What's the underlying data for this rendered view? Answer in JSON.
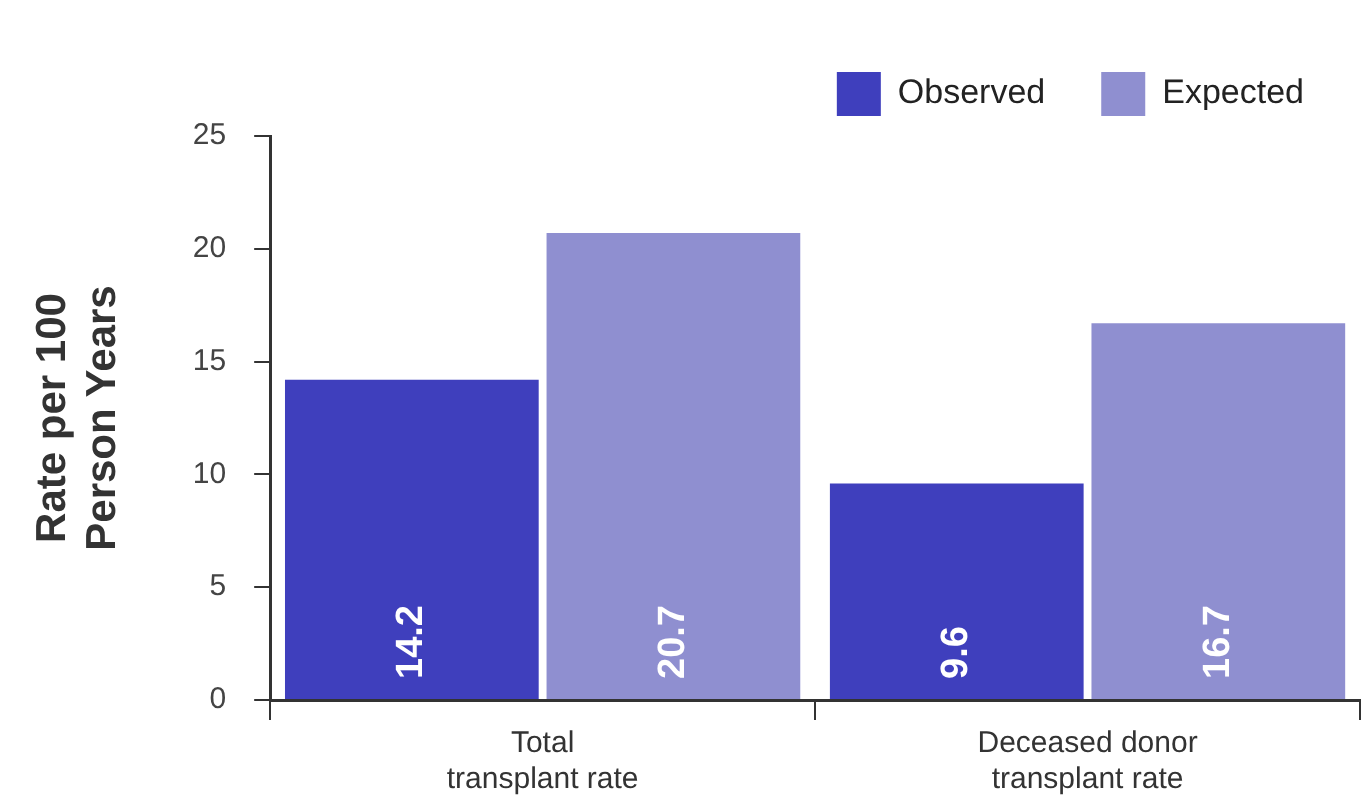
{
  "chart_data": {
    "type": "bar",
    "ylabel": "Rate per 100\nPerson Years",
    "categories": [
      "Total\ntransplant rate",
      "Deceased donor\ntransplant rate"
    ],
    "series": [
      {
        "name": "Observed",
        "color": "#3f3fbd",
        "values": [
          14.2,
          9.6
        ]
      },
      {
        "name": "Expected",
        "color": "#8f8fd0",
        "values": [
          20.7,
          16.7
        ]
      }
    ],
    "ylim": [
      0,
      25
    ],
    "yticks": [
      0,
      5,
      10,
      15,
      20,
      25
    ],
    "grid": false,
    "legend": "top right",
    "data_labels": true
  }
}
